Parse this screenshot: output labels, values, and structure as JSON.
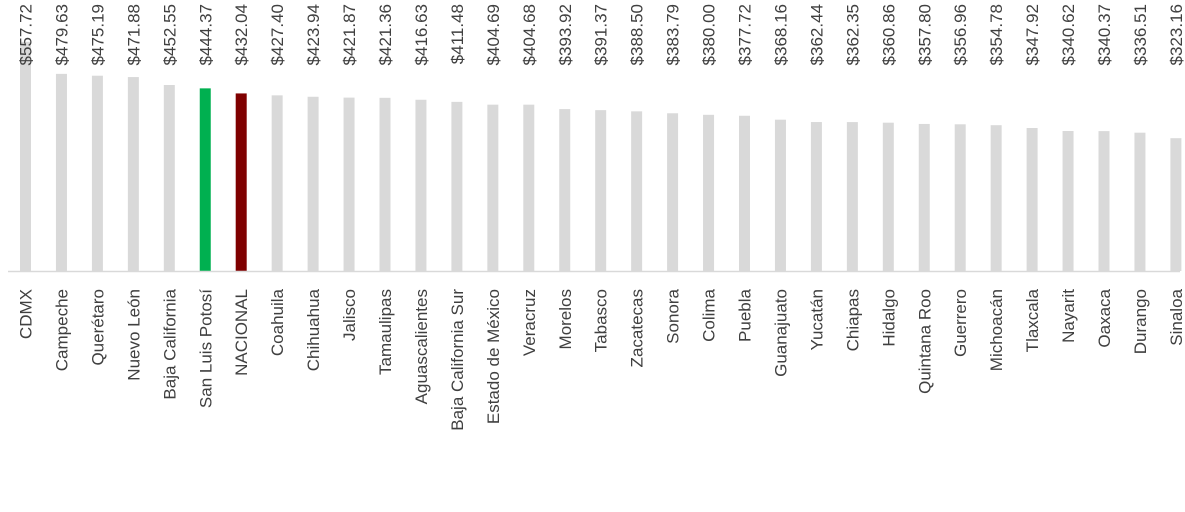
{
  "chart_data": {
    "type": "bar",
    "categories": [
      "CDMX",
      "Campeche",
      "Querétaro",
      "Nuevo León",
      "Baja California",
      "San Luis Potosí",
      "NACIONAL",
      "Coahuila",
      "Chihuahua",
      "Jalisco",
      "Tamaulipas",
      "Aguascalientes",
      "Baja California Sur",
      "Estado de México",
      "Veracruz",
      "Morelos",
      "Tabasco",
      "Zacatecas",
      "Sonora",
      "Colima",
      "Puebla",
      "Guanajuato",
      "Yucatán",
      "Chiapas",
      "Hidalgo",
      "Quintana Roo",
      "Guerrero",
      "Michoacán",
      "Tlaxcala",
      "Nayarit",
      "Oaxaca",
      "Durango",
      "Sinaloa"
    ],
    "values": [
      557.72,
      479.63,
      475.19,
      471.88,
      452.55,
      444.37,
      432.04,
      427.4,
      423.94,
      421.87,
      421.36,
      416.63,
      411.48,
      404.69,
      404.68,
      393.92,
      391.37,
      388.5,
      383.79,
      380.0,
      377.72,
      368.16,
      362.44,
      362.35,
      360.86,
      357.8,
      356.96,
      354.78,
      347.92,
      340.62,
      340.37,
      336.51,
      323.16
    ],
    "data_labels": [
      "$557.72",
      "$479.63",
      "$475.19",
      "$471.88",
      "$452.55",
      "$444.37",
      "$432.04",
      "$427.40",
      "$423.94",
      "$421.87",
      "$421.36",
      "$416.63",
      "$411.48",
      "$404.69",
      "$404.68",
      "$393.92",
      "$391.37",
      "$388.50",
      "$383.79",
      "$380.00",
      "$377.72",
      "$368.16",
      "$362.44",
      "$362.35",
      "$360.86",
      "$357.80",
      "$356.96",
      "$354.78",
      "$347.92",
      "$340.62",
      "$340.37",
      "$336.51",
      "$323.16"
    ],
    "colors": {
      "default": "#d9d9d9",
      "highlight": {
        "San Luis Potosí": "#00b050",
        "NACIONAL": "#7f0000"
      }
    },
    "title": "",
    "xlabel": "",
    "ylabel": "",
    "ylim": [
      0,
      480
    ],
    "grid": false,
    "legend": "none"
  }
}
